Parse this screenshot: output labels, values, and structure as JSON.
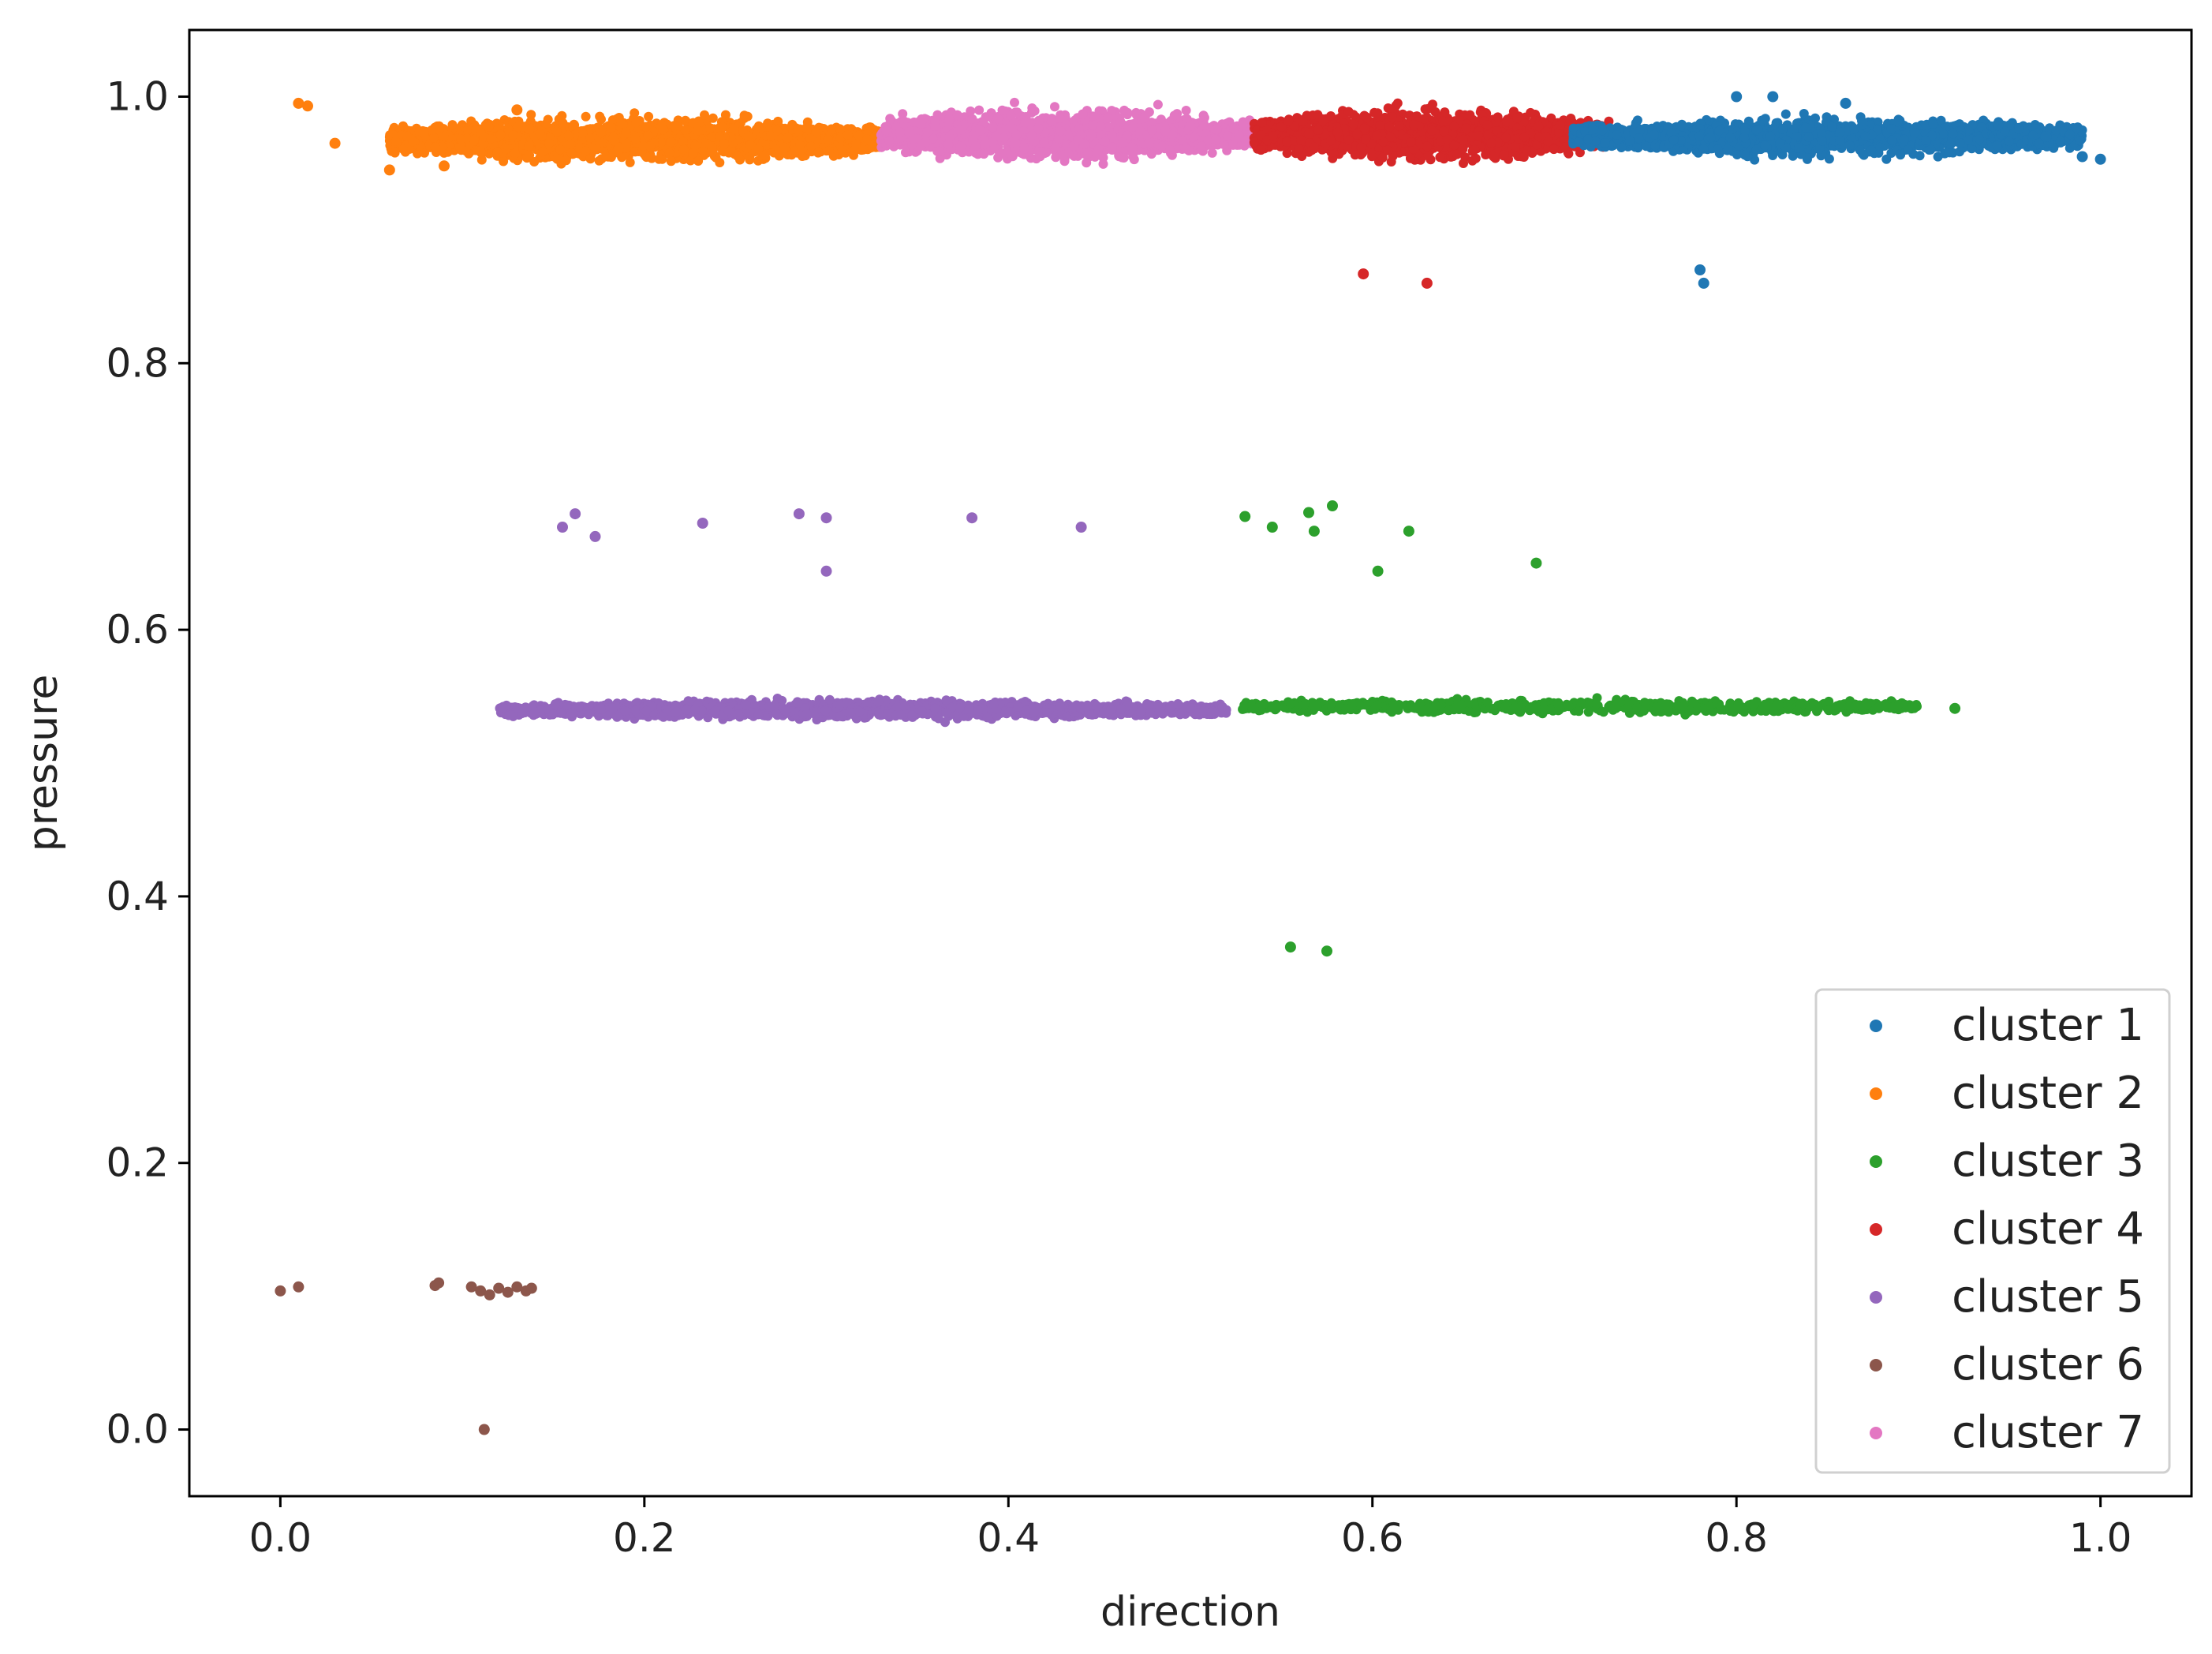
{
  "chart_data": {
    "type": "scatter",
    "xlabel": "direction",
    "ylabel": "pressure",
    "xlim": [
      -0.05,
      1.05
    ],
    "ylim": [
      -0.05,
      1.05
    ],
    "xticks": [
      "0.0",
      "0.2",
      "0.4",
      "0.6",
      "0.8",
      "1.0"
    ],
    "yticks": [
      "0.0",
      "0.2",
      "0.4",
      "0.6",
      "0.8",
      "1.0"
    ],
    "grid": false,
    "legend": {
      "position": "lower-right",
      "entries": [
        "cluster 1",
        "cluster 2",
        "cluster 3",
        "cluster 4",
        "cluster 5",
        "cluster 6",
        "cluster 7"
      ]
    },
    "series": [
      {
        "name": "cluster 1",
        "color": "#1f77b4",
        "band": {
          "x": [
            0.71,
            0.99
          ],
          "y": [
            0.95,
            0.99
          ],
          "count": 1800
        },
        "points": [
          [
            0.78,
            0.87
          ],
          [
            0.782,
            0.86
          ],
          [
            0.8,
            1.0
          ],
          [
            0.82,
            1.0
          ],
          [
            0.86,
            0.995
          ],
          [
            0.97,
            0.97
          ],
          [
            0.99,
            0.955
          ],
          [
            1.0,
            0.953
          ]
        ]
      },
      {
        "name": "cluster 2",
        "color": "#ff7f0e",
        "band": {
          "x": [
            0.06,
            0.33
          ],
          "y": [
            0.945,
            0.99
          ],
          "count": 2200
        },
        "points": [
          [
            0.01,
            0.995
          ],
          [
            0.015,
            0.993
          ],
          [
            0.03,
            0.965
          ],
          [
            0.06,
            0.945
          ],
          [
            0.09,
            0.948
          ],
          [
            0.13,
            0.99
          ]
        ]
      },
      {
        "name": "cluster 3",
        "color": "#2ca02c",
        "band": {
          "x": [
            0.525,
            0.9
          ],
          "y": [
            0.535,
            0.55
          ],
          "count": 700
        },
        "points": [
          [
            0.53,
            0.685
          ],
          [
            0.545,
            0.677
          ],
          [
            0.565,
            0.688
          ],
          [
            0.568,
            0.674
          ],
          [
            0.578,
            0.693
          ],
          [
            0.603,
            0.644
          ],
          [
            0.62,
            0.674
          ],
          [
            0.69,
            0.65
          ],
          [
            0.555,
            0.362
          ],
          [
            0.575,
            0.359
          ],
          [
            0.92,
            0.541
          ]
        ]
      },
      {
        "name": "cluster 4",
        "color": "#d62728",
        "band": {
          "x": [
            0.535,
            0.73
          ],
          "y": [
            0.945,
            0.998
          ],
          "count": 1700
        },
        "points": [
          [
            0.595,
            0.867
          ],
          [
            0.63,
            0.86
          ],
          [
            0.735,
            0.975
          ],
          [
            0.74,
            0.97
          ]
        ]
      },
      {
        "name": "cluster 5",
        "color": "#9467bd",
        "band": {
          "x": [
            0.12,
            0.52
          ],
          "y": [
            0.53,
            0.55
          ],
          "count": 1400
        },
        "points": [
          [
            0.155,
            0.677
          ],
          [
            0.162,
            0.687
          ],
          [
            0.173,
            0.67
          ],
          [
            0.232,
            0.68
          ],
          [
            0.285,
            0.687
          ],
          [
            0.3,
            0.684
          ],
          [
            0.3,
            0.644
          ],
          [
            0.38,
            0.684
          ],
          [
            0.44,
            0.677
          ]
        ]
      },
      {
        "name": "cluster 6",
        "color": "#8c564b",
        "band": null,
        "points": [
          [
            0.0,
            0.104
          ],
          [
            0.01,
            0.107
          ],
          [
            0.085,
            0.108
          ],
          [
            0.087,
            0.11
          ],
          [
            0.105,
            0.107
          ],
          [
            0.11,
            0.104
          ],
          [
            0.115,
            0.101
          ],
          [
            0.12,
            0.106
          ],
          [
            0.125,
            0.103
          ],
          [
            0.13,
            0.107
          ],
          [
            0.135,
            0.104
          ],
          [
            0.138,
            0.106
          ],
          [
            0.112,
            0.0
          ]
        ]
      },
      {
        "name": "cluster 7",
        "color": "#e377c2",
        "band": {
          "x": [
            0.33,
            0.535
          ],
          "y": [
            0.945,
            0.998
          ],
          "count": 1700
        },
        "points": []
      }
    ]
  }
}
